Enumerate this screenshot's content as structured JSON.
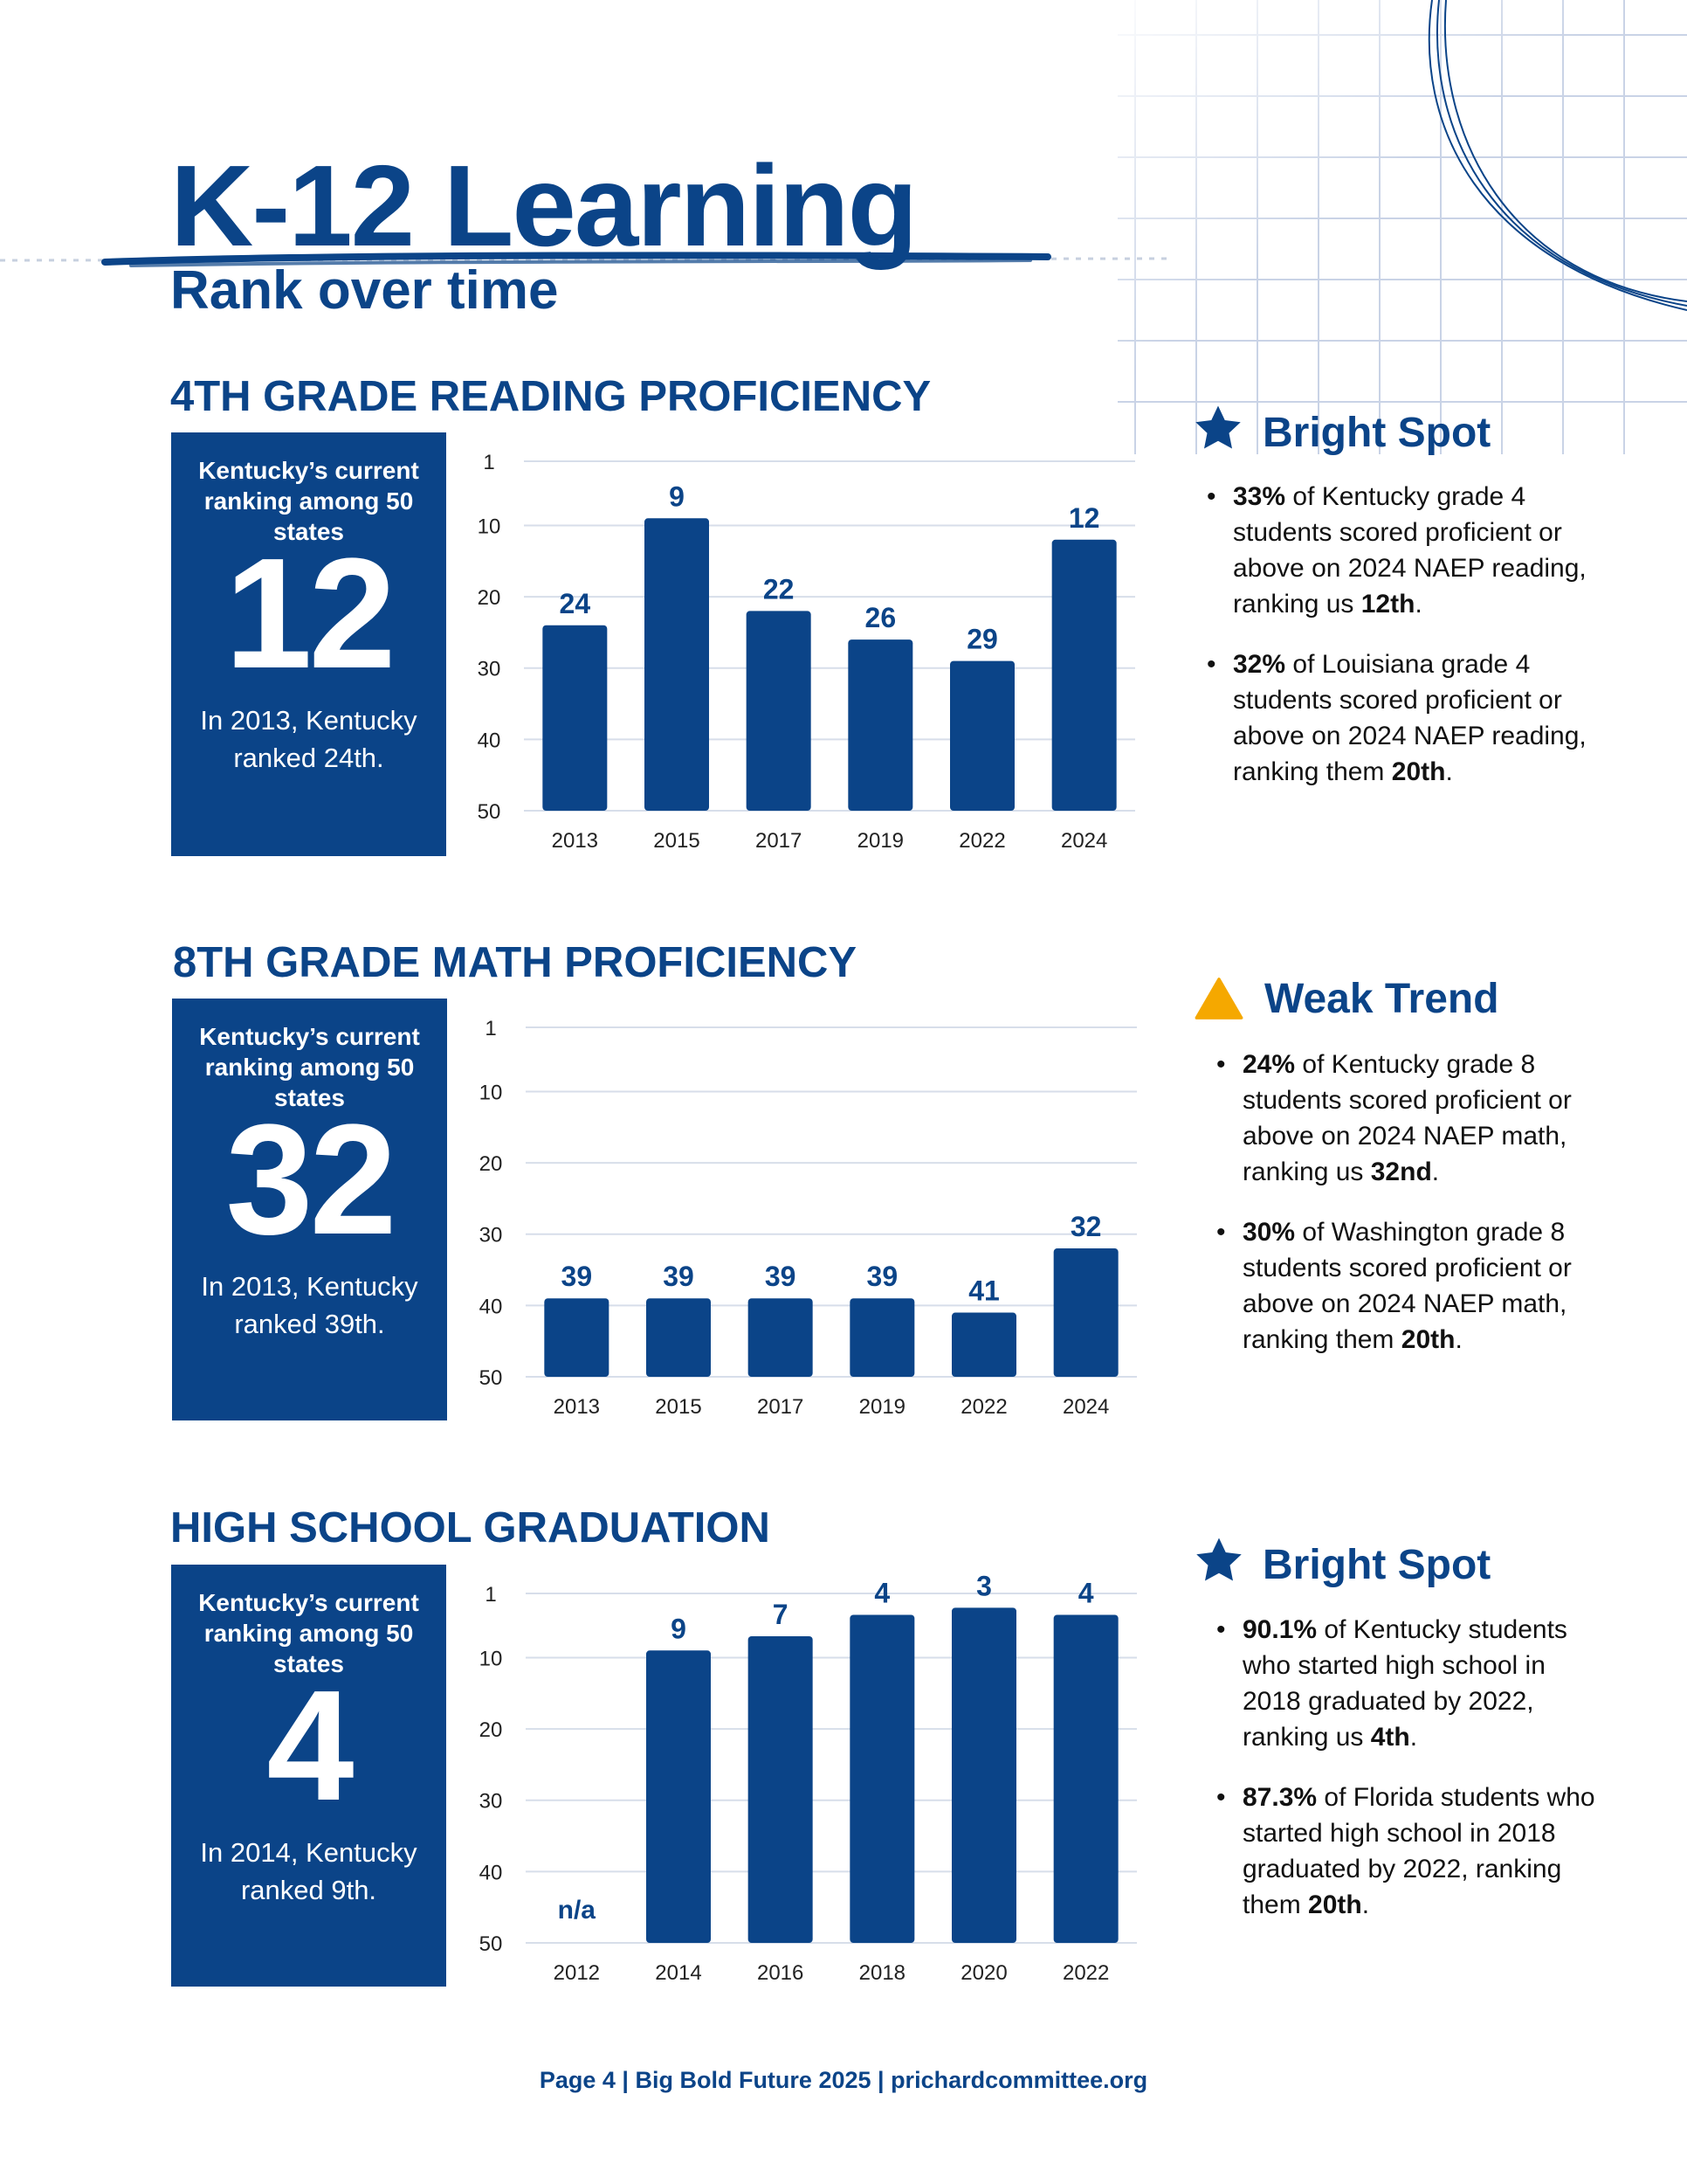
{
  "header": {
    "title": "K-12 Learning",
    "subtitle": "Rank over time"
  },
  "colors": {
    "primary": "#0b4488",
    "grid": "#d7deea",
    "warning": "#f5a800"
  },
  "sections": [
    {
      "heading": "4TH GRADE READING PROFICIENCY",
      "rank_box": {
        "label": "Kentucky’s current ranking among 50 states",
        "rank": "12",
        "note": "In 2013, Kentucky ranked 24th."
      },
      "callout": {
        "icon": "star-icon",
        "title": "Bright Spot",
        "bullets": [
          {
            "bold": "33%",
            "text": " of Kentucky grade 4 students scored proficient or above on 2024 NAEP reading, ranking us ",
            "bold_end": "12th",
            "end": "."
          },
          {
            "bold": "32%",
            "text": " of Louisiana grade 4 students scored proficient or above on 2024 NAEP reading, ranking them ",
            "bold_end": "20th",
            "end": "."
          }
        ]
      }
    },
    {
      "heading": "8TH GRADE MATH PROFICIENCY",
      "rank_box": {
        "label": "Kentucky’s current ranking among 50 states",
        "rank": "32",
        "note": "In 2013, Kentucky ranked 39th."
      },
      "callout": {
        "icon": "warning-icon",
        "title": "Weak Trend",
        "bullets": [
          {
            "bold": "24%",
            "text": " of Kentucky grade 8 students scored proficient or above on 2024 NAEP math, ranking us ",
            "bold_end": "32nd",
            "end": "."
          },
          {
            "bold": "30%",
            "text": " of Washington grade 8 students scored proficient or above on 2024 NAEP math, ranking them ",
            "bold_end": "20th",
            "end": "."
          }
        ]
      }
    },
    {
      "heading": "HIGH SCHOOL GRADUATION",
      "rank_box": {
        "label": "Kentucky’s current ranking among 50 states",
        "rank": "4",
        "note": "In 2014, Kentucky ranked 9th."
      },
      "callout": {
        "icon": "star-icon",
        "title": "Bright Spot",
        "bullets": [
          {
            "bold": "90.1%",
            "text": " of Kentucky students who started high school in 2018 graduated by 2022, ranking us ",
            "bold_end": "4th",
            "end": "."
          },
          {
            "bold": "87.3%",
            "text": " of Florida students who started high school in 2018 graduated by 2022, ranking them ",
            "bold_end": "20th",
            "end": "."
          }
        ]
      }
    }
  ],
  "chart_data": [
    {
      "type": "bar",
      "title": "4TH GRADE READING PROFICIENCY",
      "categories": [
        "2013",
        "2015",
        "2017",
        "2019",
        "2022",
        "2024"
      ],
      "values": [
        24,
        9,
        22,
        26,
        29,
        12
      ],
      "labels": [
        "24",
        "9",
        "22",
        "26",
        "29",
        "12"
      ],
      "yticks": [
        "1",
        "10",
        "20",
        "30",
        "40",
        "50"
      ],
      "ytick_values": [
        1,
        10,
        20,
        30,
        40,
        50
      ],
      "ylim": [
        1,
        50
      ],
      "y_inverted": true,
      "grid": true
    },
    {
      "type": "bar",
      "title": "8TH GRADE MATH PROFICIENCY",
      "categories": [
        "2013",
        "2015",
        "2017",
        "2019",
        "2022",
        "2024"
      ],
      "values": [
        39,
        39,
        39,
        39,
        41,
        32
      ],
      "labels": [
        "39",
        "39",
        "39",
        "39",
        "41",
        "32"
      ],
      "yticks": [
        "1",
        "10",
        "20",
        "30",
        "40",
        "50"
      ],
      "ytick_values": [
        1,
        10,
        20,
        30,
        40,
        50
      ],
      "ylim": [
        1,
        50
      ],
      "y_inverted": true,
      "grid": true
    },
    {
      "type": "bar",
      "title": "HIGH SCHOOL GRADUATION",
      "categories": [
        "2012",
        "2014",
        "2016",
        "2018",
        "2020",
        "2022"
      ],
      "values": [
        null,
        9,
        7,
        4,
        3,
        4
      ],
      "labels": [
        "n/a",
        "9",
        "7",
        "4",
        "3",
        "4"
      ],
      "yticks": [
        "1",
        "10",
        "20",
        "30",
        "40",
        "50"
      ],
      "ytick_values": [
        1,
        10,
        20,
        30,
        40,
        50
      ],
      "ylim": [
        1,
        50
      ],
      "y_inverted": true,
      "grid": true
    }
  ],
  "footer": {
    "text": "Page 4 | Big Bold Future 2025 | prichardcommittee.org"
  }
}
